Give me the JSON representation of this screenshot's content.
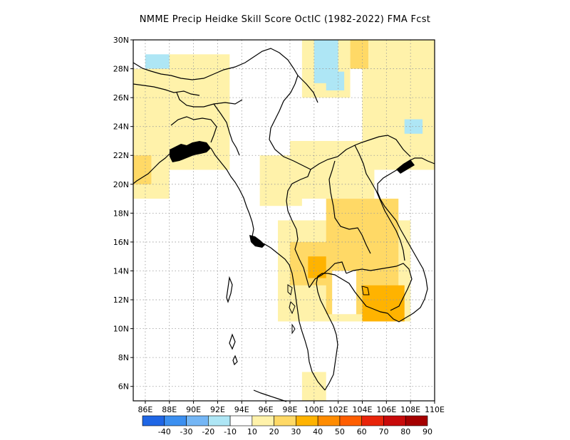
{
  "title": "NMME Precip Heidke Skill Score OctIC (1982-2022) FMA Fcst",
  "map": {
    "lon_range": [
      85,
      110
    ],
    "lat_range": [
      5,
      30
    ],
    "lon_ticks": [
      "86E",
      "88E",
      "90E",
      "92E",
      "94E",
      "96E",
      "98E",
      "100E",
      "102E",
      "104E",
      "106E",
      "108E",
      "110E"
    ],
    "lat_ticks": [
      "6N",
      "8N",
      "10N",
      "12N",
      "14N",
      "16N",
      "18N",
      "20N",
      "22N",
      "24N",
      "26N",
      "28N",
      "30N"
    ],
    "grid": "dotted"
  },
  "colorbar": {
    "labels": [
      "-40",
      "-30",
      "-20",
      "-10",
      "10",
      "20",
      "30",
      "40",
      "50",
      "60",
      "70",
      "80",
      "90"
    ],
    "colors": [
      "#1f66e5",
      "#3b8ff0",
      "#74b6f5",
      "#aee6f5",
      "#ffffff",
      "#fff2aa",
      "#ffd966",
      "#ffb300",
      "#ff8c00",
      "#ff5e00",
      "#e8240a",
      "#c80a0a",
      "#a50000"
    ]
  },
  "skill_regions": [
    {
      "level": 10,
      "color": "#fff2aa",
      "lon": [
        85,
        88
      ],
      "lat": [
        19,
        28
      ]
    },
    {
      "level": 10,
      "color": "#fff2aa",
      "lon": [
        88,
        93
      ],
      "lat": [
        21,
        29
      ]
    },
    {
      "level": 10,
      "color": "#fff2aa",
      "lon": [
        95.5,
        99
      ],
      "lat": [
        18.5,
        22
      ]
    },
    {
      "level": 10,
      "color": "#fff2aa",
      "lon": [
        98,
        105
      ],
      "lat": [
        19,
        23
      ]
    },
    {
      "level": 10,
      "color": "#fff2aa",
      "lon": [
        104,
        110
      ],
      "lat": [
        21,
        30
      ]
    },
    {
      "level": 10,
      "color": "#fff2aa",
      "lon": [
        99,
        103
      ],
      "lat": [
        26,
        30
      ]
    },
    {
      "level": 10,
      "color": "#fff2aa",
      "lon": [
        99,
        101
      ],
      "lat": [
        5,
        7
      ]
    },
    {
      "level": 10,
      "color": "#fff2aa",
      "lon": [
        97,
        108
      ],
      "lat": [
        10.5,
        17.5
      ]
    },
    {
      "level": 20,
      "color": "#ffd966",
      "lon": [
        101,
        107
      ],
      "lat": [
        11,
        19
      ]
    },
    {
      "level": 20,
      "color": "#ffd966",
      "lon": [
        98,
        102
      ],
      "lat": [
        13,
        16
      ]
    },
    {
      "level": 20,
      "color": "#ffd966",
      "lon": [
        85,
        86.5
      ],
      "lat": [
        20,
        22
      ]
    },
    {
      "level": 20,
      "color": "#ffd966",
      "lon": [
        103,
        104.5
      ],
      "lat": [
        28,
        30
      ]
    },
    {
      "level": 30,
      "color": "#ffb300",
      "lon": [
        104,
        107.5
      ],
      "lat": [
        10.5,
        13
      ]
    },
    {
      "level": 30,
      "color": "#ffb300",
      "lon": [
        99.5,
        101
      ],
      "lat": [
        13.5,
        15
      ]
    },
    {
      "level": -10,
      "color": "#aee6f5",
      "lon": [
        100,
        102
      ],
      "lat": [
        27,
        30
      ]
    },
    {
      "level": -10,
      "color": "#aee6f5",
      "lon": [
        101,
        102.5
      ],
      "lat": [
        26.5,
        27.8
      ]
    },
    {
      "level": -10,
      "color": "#aee6f5",
      "lon": [
        107.5,
        109
      ],
      "lat": [
        23.5,
        24.5
      ]
    },
    {
      "level": -10,
      "color": "#aee6f5",
      "lon": [
        86,
        88
      ],
      "lat": [
        28,
        29
      ]
    }
  ],
  "no_data_regions": [
    {
      "lon": [
        101.5,
        103.5
      ],
      "lat": [
        11,
        14
      ]
    }
  ]
}
